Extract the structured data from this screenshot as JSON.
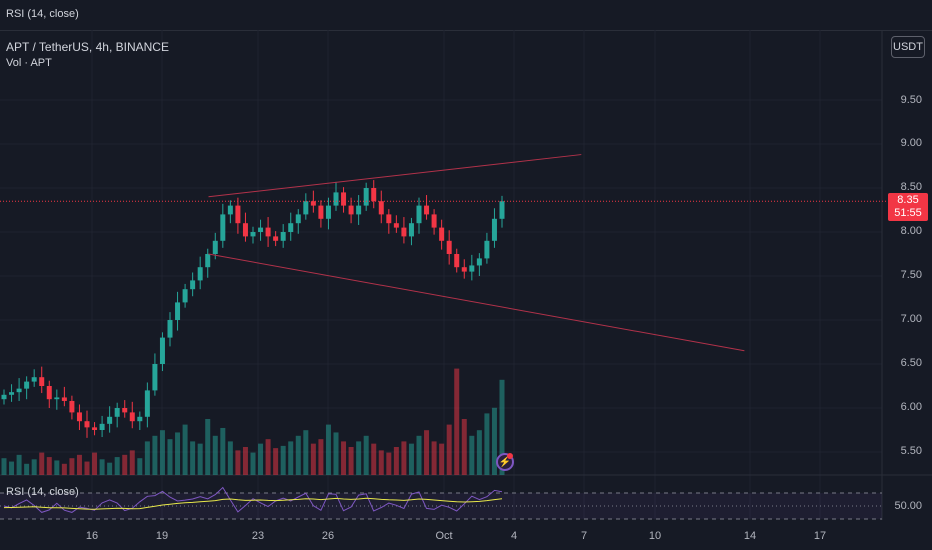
{
  "top_indicator": {
    "label": "RSI (14, close)"
  },
  "symbol_title": "APT / TetherUS, 4h, BINANCE",
  "volume_label": "Vol · APT",
  "currency": "USDT",
  "price_axis": [
    "9.50",
    "9.00",
    "8.50",
    "8.00",
    "7.50",
    "7.00",
    "6.50",
    "6.00",
    "5.50"
  ],
  "current_price": {
    "value": "8.35",
    "countdown": "51:55"
  },
  "rsi_pane": {
    "label": "RSI (14, close)",
    "axis_value": "50.00"
  },
  "time_axis": [
    "16",
    "19",
    "23",
    "26",
    "Oct",
    "4",
    "7",
    "10",
    "14",
    "17"
  ],
  "colors": {
    "up": "#26a69a",
    "down": "#f23645",
    "background": "#161a25",
    "trendline": "#b2324a",
    "rsi_line": "#7e57c2",
    "rsi_ma": "#e8e84a"
  },
  "chart_data": {
    "type": "candlestick",
    "symbol": "APT / TetherUS",
    "interval": "4h",
    "exchange": "BINANCE",
    "ylim": [
      5.3,
      9.8
    ],
    "close_path": [
      6.15,
      6.18,
      6.22,
      6.3,
      6.35,
      6.25,
      6.1,
      6.12,
      6.08,
      5.95,
      5.85,
      5.78,
      5.75,
      5.82,
      5.9,
      6.0,
      5.95,
      5.85,
      5.9,
      6.2,
      6.5,
      6.8,
      7.0,
      7.2,
      7.35,
      7.45,
      7.6,
      7.75,
      7.9,
      8.2,
      8.3,
      8.1,
      7.95,
      8.0,
      8.05,
      7.95,
      7.9,
      8.0,
      8.1,
      8.2,
      8.35,
      8.3,
      8.15,
      8.3,
      8.45,
      8.3,
      8.2,
      8.3,
      8.5,
      8.35,
      8.2,
      8.1,
      8.05,
      7.95,
      8.1,
      8.3,
      8.2,
      8.05,
      7.9,
      7.75,
      7.6,
      7.55,
      7.62,
      7.7,
      7.9,
      8.15,
      8.35
    ],
    "volume": [
      0.15,
      0.12,
      0.18,
      0.1,
      0.14,
      0.2,
      0.16,
      0.13,
      0.1,
      0.15,
      0.18,
      0.12,
      0.2,
      0.14,
      0.11,
      0.16,
      0.18,
      0.22,
      0.15,
      0.3,
      0.35,
      0.4,
      0.32,
      0.38,
      0.45,
      0.3,
      0.28,
      0.5,
      0.35,
      0.42,
      0.3,
      0.22,
      0.25,
      0.2,
      0.28,
      0.32,
      0.24,
      0.26,
      0.3,
      0.35,
      0.4,
      0.28,
      0.32,
      0.45,
      0.38,
      0.3,
      0.25,
      0.3,
      0.35,
      0.28,
      0.22,
      0.2,
      0.25,
      0.3,
      0.28,
      0.35,
      0.4,
      0.3,
      0.28,
      0.45,
      0.95,
      0.5,
      0.35,
      0.4,
      0.55,
      0.6,
      0.85
    ],
    "trendlines": [
      {
        "from": {
          "date": "Sep 21",
          "price": 8.4
        },
        "to": {
          "date": "Oct 7",
          "price": 8.88
        }
      },
      {
        "from": {
          "date": "Sep 21",
          "price": 7.75
        },
        "to": {
          "date": "Oct 14",
          "price": 6.65
        }
      }
    ]
  }
}
